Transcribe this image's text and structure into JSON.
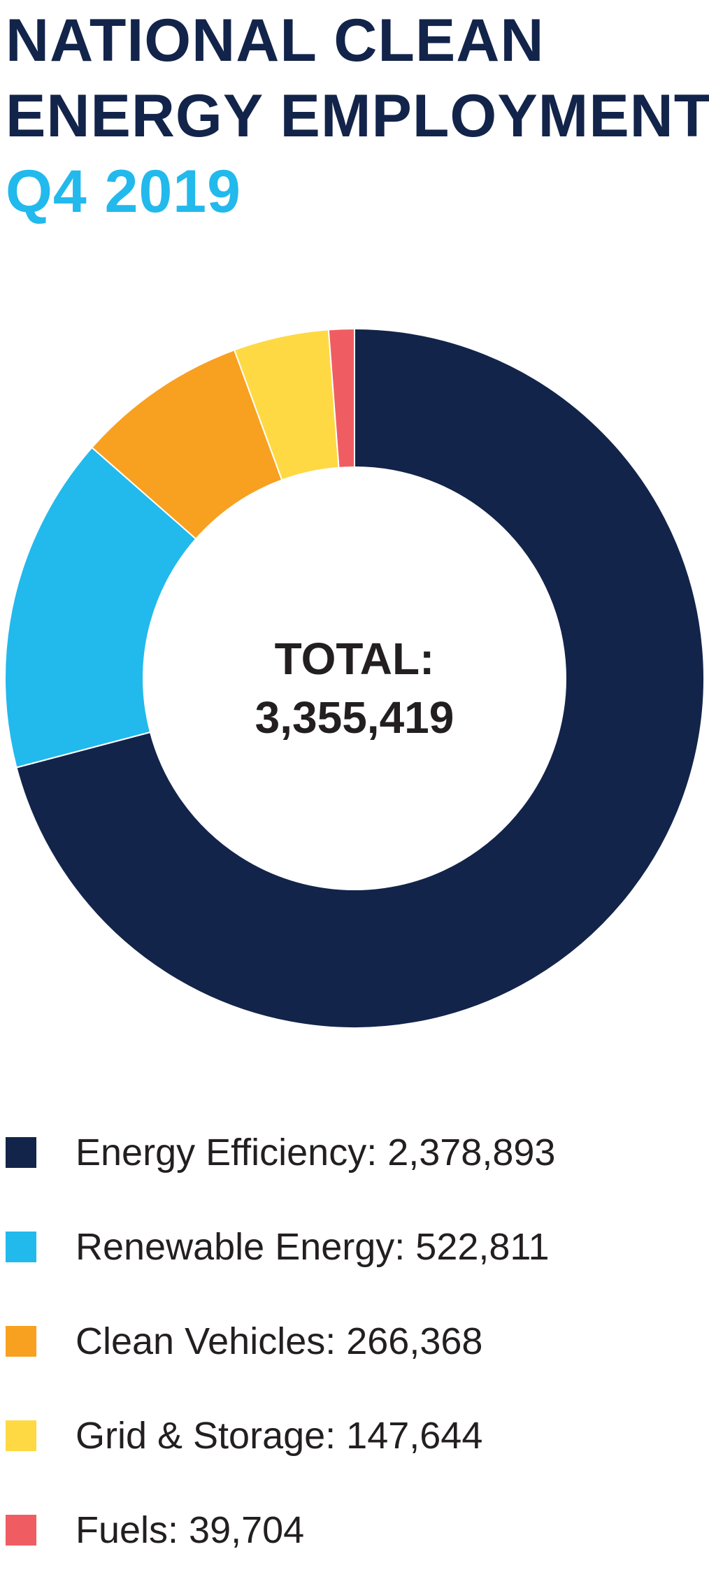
{
  "header": {
    "title_line1": "NATIONAL CLEAN",
    "title_line2": "ENERGY EMPLOYMENT",
    "subtitle": "Q4 2019"
  },
  "center": {
    "label": "TOTAL:",
    "value": "3,355,419"
  },
  "legend": [
    {
      "label": "Energy Efficiency: 2,378,893",
      "color": "#13244a"
    },
    {
      "label": "Renewable Energy: 522,811",
      "color": "#22b9ec"
    },
    {
      "label": "Clean Vehicles: 266,368",
      "color": "#f8a020"
    },
    {
      "label": "Grid & Storage: 147,644",
      "color": "#fed944"
    },
    {
      "label": "Fuels: 39,704",
      "color": "#ef5d62"
    }
  ],
  "chart_data": {
    "type": "pie",
    "title": "NATIONAL CLEAN ENERGY EMPLOYMENT Q4 2019",
    "total": 3355419,
    "categories": [
      "Energy Efficiency",
      "Renewable Energy",
      "Clean Vehicles",
      "Grid & Storage",
      "Fuels"
    ],
    "values": [
      2378893,
      522811,
      266368,
      147644,
      39704
    ],
    "colors": [
      "#13244a",
      "#22b9ec",
      "#f8a020",
      "#fed944",
      "#ef5d62"
    ],
    "style": "donut",
    "legend_position": "bottom"
  }
}
